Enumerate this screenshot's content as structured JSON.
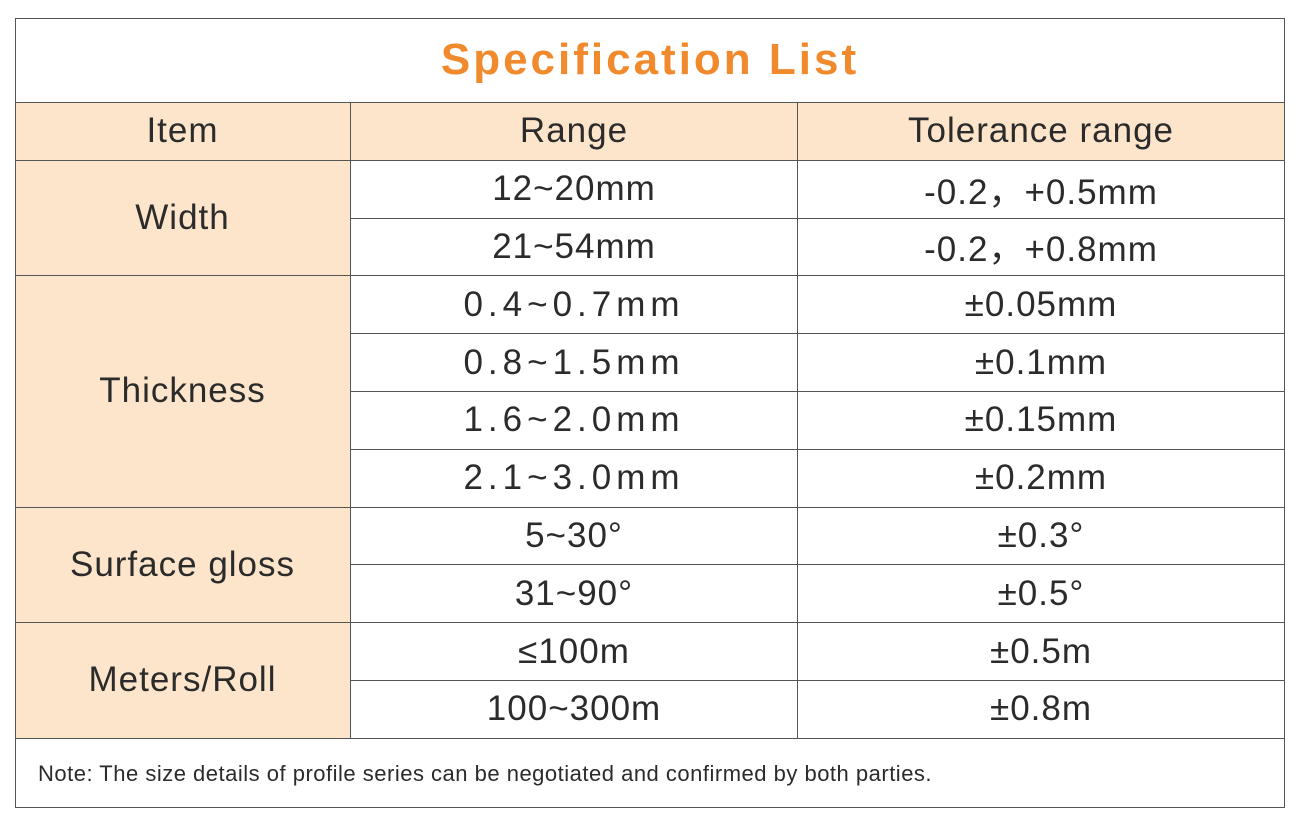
{
  "title": "Specification List",
  "table": {
    "headers": [
      "Item",
      "Range",
      "Tolerance range"
    ],
    "groups": [
      {
        "item": "Width",
        "rows": [
          [
            "12~20mm",
            "-0.2，+0.5mm"
          ],
          [
            "21~54mm",
            "-0.2，+0.8mm"
          ]
        ]
      },
      {
        "item": "Thickness",
        "rows": [
          [
            "0.4~0.7mm",
            "±0.05mm"
          ],
          [
            "0.8~1.5mm",
            "±0.1mm"
          ],
          [
            "1.6~2.0mm",
            "±0.15mm"
          ],
          [
            "2.1~3.0mm",
            "±0.2mm"
          ]
        ]
      },
      {
        "item": "Surface gloss",
        "rows": [
          [
            "5~30°",
            "±0.3°"
          ],
          [
            "31~90°",
            "±0.5°"
          ]
        ]
      },
      {
        "item": "Meters/Roll",
        "rows": [
          [
            "≤100m",
            "±0.5m"
          ],
          [
            "100~300m",
            "±0.8m"
          ]
        ]
      }
    ]
  },
  "note": "Note: The size details of profile series can be negotiated and confirmed by both parties."
}
